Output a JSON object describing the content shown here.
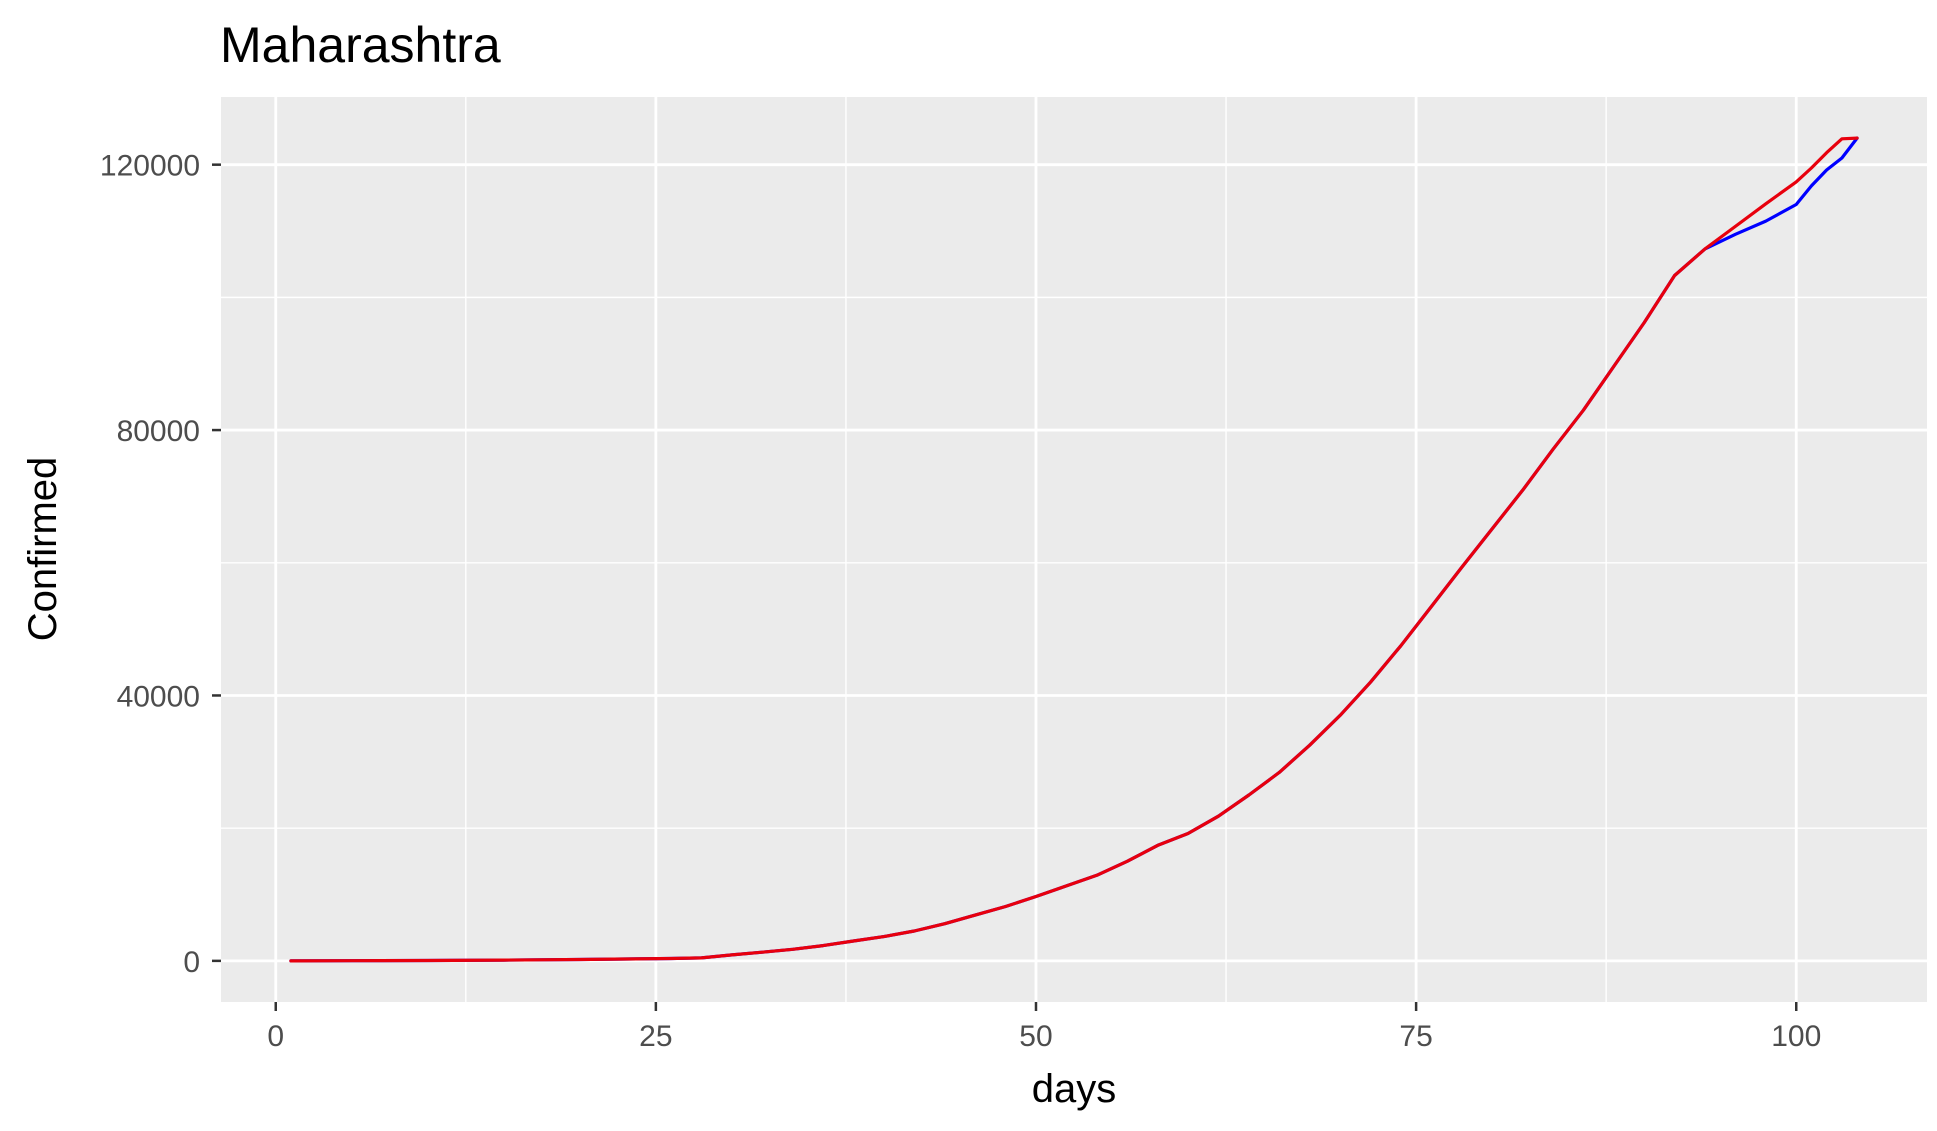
{
  "chart_data": {
    "type": "line",
    "title": "Maharashtra",
    "xlabel": "days",
    "ylabel": "Confirmed",
    "xlim": [
      -3.6,
      108.6
    ],
    "ylim": [
      -6200,
      130200
    ],
    "x_ticks": [
      0,
      25,
      50,
      75,
      100
    ],
    "x_tick_labels": [
      "0",
      "25",
      "50",
      "75",
      "100"
    ],
    "x_minor_ticks": [
      12.5,
      37.5,
      62.5,
      87.5
    ],
    "y_ticks": [
      0,
      40000,
      80000,
      120000
    ],
    "y_tick_labels": [
      "0",
      "40000",
      "80000",
      "120000"
    ],
    "y_minor_ticks": [
      20000,
      60000,
      100000
    ],
    "grid": true,
    "legend": "none",
    "colors": {
      "panel": "#ebebeb",
      "grid": "#ffffff",
      "tick": "#333333"
    },
    "series": [
      {
        "color": "#0000ff",
        "x": [
          1,
          5,
          10,
          15,
          20,
          23,
          26,
          28,
          30,
          32,
          34,
          36,
          38,
          40,
          42,
          44,
          46,
          48,
          50,
          52,
          54,
          56,
          58,
          60,
          62,
          64,
          66,
          68,
          70,
          72,
          74,
          76,
          78,
          80,
          82,
          84,
          86,
          88,
          90,
          92,
          94,
          96,
          98,
          100,
          101,
          102,
          103,
          104
        ],
        "y": [
          0,
          20,
          60,
          120,
          200,
          280,
          350,
          450,
          900,
          1300,
          1750,
          2300,
          3000,
          3650,
          4500,
          5600,
          6900,
          8200,
          9700,
          11300,
          12900,
          15000,
          17400,
          19200,
          21800,
          25000,
          28400,
          32500,
          37000,
          42000,
          47500,
          53400,
          59300,
          65100,
          70900,
          77100,
          83000,
          89600,
          96200,
          103300,
          107300,
          109500,
          111500,
          114000,
          116800,
          119200,
          121000,
          124000
        ]
      },
      {
        "color": "#e8000d",
        "x": [
          1,
          5,
          10,
          15,
          20,
          23,
          26,
          28,
          30,
          32,
          34,
          36,
          38,
          40,
          42,
          44,
          46,
          48,
          50,
          52,
          54,
          56,
          58,
          60,
          62,
          64,
          66,
          68,
          70,
          72,
          74,
          76,
          78,
          80,
          82,
          84,
          86,
          88,
          90,
          92,
          94,
          96,
          98,
          100,
          101,
          102,
          103,
          104
        ],
        "y": [
          0,
          20,
          60,
          120,
          200,
          280,
          350,
          450,
          900,
          1300,
          1750,
          2300,
          3000,
          3650,
          4500,
          5600,
          6900,
          8200,
          9700,
          11300,
          12900,
          15000,
          17400,
          19200,
          21800,
          25000,
          28400,
          32500,
          37000,
          42000,
          47500,
          53400,
          59300,
          65100,
          70900,
          77100,
          83000,
          89600,
          96200,
          103300,
          107300,
          110700,
          114100,
          117400,
          119500,
          121800,
          123900,
          124000
        ]
      }
    ]
  }
}
